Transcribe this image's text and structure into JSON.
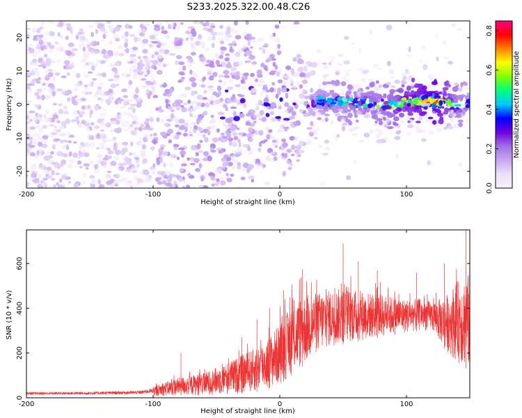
{
  "figure_title": "S233.2025.322.00.48.C26",
  "chart_data": [
    {
      "type": "heatmap",
      "title": "S233.2025.322.00.48.C26",
      "xlabel": "Height of straight line (km)",
      "ylabel": "Frequency (Hz)",
      "xlim": [
        -200,
        150
      ],
      "ylim": [
        -25,
        25
      ],
      "xticks": [
        -200,
        -100,
        0,
        100
      ],
      "yticks": [
        -20,
        -10,
        0,
        10,
        20
      ],
      "colorbar": {
        "label": "Normalized spectral amplitude",
        "range": [
          0.0,
          0.85
        ],
        "ticks": [
          0.0,
          0.2,
          0.4,
          0.6,
          0.8
        ],
        "colormap": [
          "#f7f0ff",
          "#ece0fb",
          "#c8a8f0",
          "#a070e8",
          "#7000e0",
          "#0000ff",
          "#00c8ff",
          "#00ff80",
          "#80ff00",
          "#ffff00",
          "#ff8000",
          "#ff0000",
          "#ff0080"
        ]
      },
      "ridge_center_hz": [
        {
          "x": 20,
          "y": 0.0
        },
        {
          "x": 30,
          "y": 1.0
        },
        {
          "x": 40,
          "y": 0.5
        },
        {
          "x": 50,
          "y": 1.0
        },
        {
          "x": 60,
          "y": 0.5
        },
        {
          "x": 70,
          "y": 0.5
        },
        {
          "x": 80,
          "y": 0.0
        },
        {
          "x": 90,
          "y": -0.5
        },
        {
          "x": 100,
          "y": 1.0
        },
        {
          "x": 110,
          "y": 1.0
        },
        {
          "x": 120,
          "y": 1.0
        },
        {
          "x": 130,
          "y": 0.5
        },
        {
          "x": 140,
          "y": -0.5
        },
        {
          "x": 150,
          "y": 0.5
        }
      ],
      "peak_amplitude_by_height": [
        {
          "x": -200,
          "v": 0.18
        },
        {
          "x": -100,
          "v": 0.2
        },
        {
          "x": -50,
          "v": 0.22
        },
        {
          "x": -30,
          "v": 0.3
        },
        {
          "x": 0,
          "v": 0.32
        },
        {
          "x": 20,
          "v": 0.3
        },
        {
          "x": 30,
          "v": 0.45
        },
        {
          "x": 50,
          "v": 0.5
        },
        {
          "x": 70,
          "v": 0.55
        },
        {
          "x": 90,
          "v": 0.6
        },
        {
          "x": 110,
          "v": 0.75
        },
        {
          "x": 120,
          "v": 0.85
        },
        {
          "x": 130,
          "v": 0.7
        },
        {
          "x": 150,
          "v": 0.4
        }
      ]
    },
    {
      "type": "line",
      "title": "",
      "xlabel": "Height of straight line (km)",
      "ylabel": "SNR (10 * v/v)",
      "xlim": [
        -200,
        150
      ],
      "ylim": [
        0,
        750
      ],
      "xticks": [
        -200,
        -100,
        0,
        100
      ],
      "yticks": [
        0,
        200,
        400,
        600
      ],
      "color": "#ee3333",
      "series": [
        {
          "name": "SNR",
          "envelope": [
            {
              "x": -200,
              "low": 5,
              "high": 30
            },
            {
              "x": -150,
              "low": 5,
              "high": 32
            },
            {
              "x": -110,
              "low": 5,
              "high": 38
            },
            {
              "x": -100,
              "low": 8,
              "high": 50
            },
            {
              "x": -80,
              "low": 10,
              "high": 90
            },
            {
              "x": -60,
              "low": 12,
              "high": 110
            },
            {
              "x": -40,
              "low": 15,
              "high": 160
            },
            {
              "x": -20,
              "low": 25,
              "high": 220
            },
            {
              "x": -10,
              "low": 40,
              "high": 260
            },
            {
              "x": 0,
              "low": 60,
              "high": 330
            },
            {
              "x": 10,
              "low": 100,
              "high": 420
            },
            {
              "x": 20,
              "low": 150,
              "high": 460
            },
            {
              "x": 30,
              "low": 200,
              "high": 470
            },
            {
              "x": 40,
              "low": 230,
              "high": 480
            },
            {
              "x": 50,
              "low": 240,
              "high": 490
            },
            {
              "x": 60,
              "low": 250,
              "high": 480
            },
            {
              "x": 70,
              "low": 260,
              "high": 470
            },
            {
              "x": 80,
              "low": 270,
              "high": 460
            },
            {
              "x": 90,
              "low": 280,
              "high": 450
            },
            {
              "x": 100,
              "low": 290,
              "high": 440
            },
            {
              "x": 110,
              "low": 300,
              "high": 440
            },
            {
              "x": 120,
              "low": 300,
              "high": 430
            },
            {
              "x": 130,
              "low": 220,
              "high": 450
            },
            {
              "x": 140,
              "low": 160,
              "high": 520
            },
            {
              "x": 150,
              "low": 120,
              "high": 560
            }
          ],
          "spikes": [
            {
              "x": -78,
              "y": 200
            },
            {
              "x": -30,
              "y": 270
            },
            {
              "x": -18,
              "y": 350
            },
            {
              "x": -8,
              "y": 400
            },
            {
              "x": 3,
              "y": 480
            },
            {
              "x": 18,
              "y": 575
            },
            {
              "x": 50,
              "y": 690
            },
            {
              "x": 62,
              "y": 610
            },
            {
              "x": 77,
              "y": 570
            },
            {
              "x": 108,
              "y": 560
            },
            {
              "x": 130,
              "y": 600
            },
            {
              "x": 147,
              "y": 750
            }
          ]
        }
      ]
    }
  ]
}
